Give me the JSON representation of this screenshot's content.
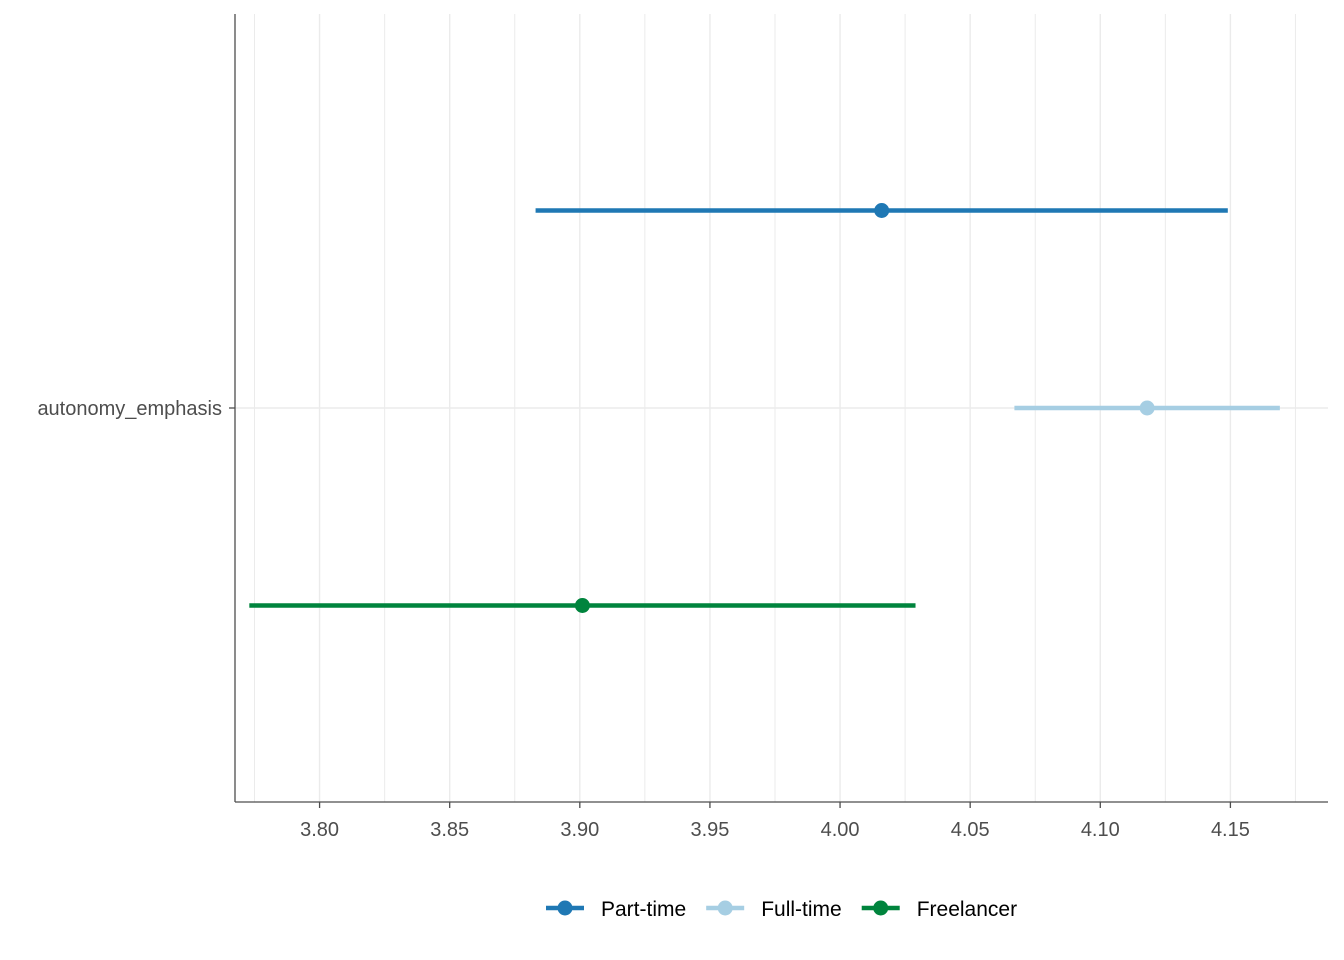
{
  "chart_data": {
    "type": "dot-and-whisker",
    "orientation": "horizontal",
    "title": "",
    "xlabel": "",
    "ylabel": "",
    "categories": [
      "autonomy_emphasis"
    ],
    "xlim": [
      3.7675,
      4.1875
    ],
    "x_ticks": [
      "3.80",
      "3.85",
      "3.90",
      "3.95",
      "4.00",
      "4.05",
      "4.10",
      "4.15"
    ],
    "grid": "vertical major and minor, horizontal at category",
    "legend_position": "bottom",
    "series": [
      {
        "name": "Part-time",
        "color": "#1f78b4",
        "estimate": 4.016,
        "lower": 3.883,
        "upper": 4.149
      },
      {
        "name": "Full-time",
        "color": "#a6cee3",
        "estimate": 4.118,
        "lower": 4.067,
        "upper": 4.169
      },
      {
        "name": "Freelancer",
        "color": "#00843d",
        "estimate": 3.901,
        "lower": 3.773,
        "upper": 4.029
      }
    ]
  }
}
